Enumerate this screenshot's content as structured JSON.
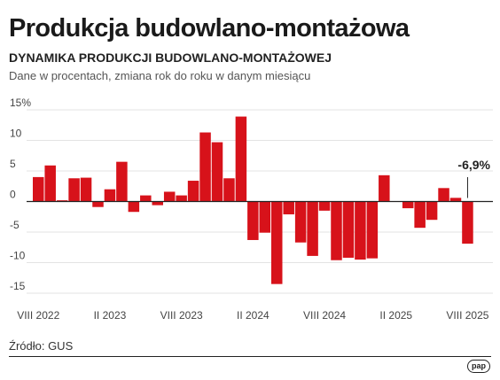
{
  "header": {
    "title": "Produkcja budowlano-montażowa",
    "subtitle": "DYNAMIKA PRODUKCJI BUDOWLANO-MONTAŻOWEJ",
    "note": "Dane w procentach, zmiana rok do roku w danym miesiącu"
  },
  "footer": {
    "source": "Źródło: GUS",
    "logo": "pap"
  },
  "colors": {
    "bar": "#d7121a",
    "grid": "#e3e3e3",
    "zero_line": "#222222"
  },
  "chart_data": {
    "type": "bar",
    "title": "DYNAMIKA PRODUKCJI BUDOWLANO-MONTAŻOWEJ",
    "x": [
      "2022-08",
      "2022-09",
      "2022-10",
      "2022-11",
      "2022-12",
      "2023-01",
      "2023-02",
      "2023-03",
      "2023-04",
      "2023-05",
      "2023-06",
      "2023-07",
      "2023-08",
      "2023-09",
      "2023-10",
      "2023-11",
      "2023-12",
      "2024-01",
      "2024-02",
      "2024-03",
      "2024-04",
      "2024-05",
      "2024-06",
      "2024-07",
      "2024-08",
      "2024-09",
      "2024-10",
      "2024-11",
      "2024-12",
      "2025-01",
      "2025-02",
      "2025-03",
      "2025-04",
      "2025-05",
      "2025-06",
      "2025-07",
      "2025-08"
    ],
    "values": [
      4.0,
      5.9,
      0.2,
      3.8,
      3.9,
      -0.9,
      2.0,
      6.5,
      -1.7,
      1.0,
      -0.6,
      1.6,
      1.0,
      3.4,
      11.3,
      9.7,
      3.8,
      13.9,
      -6.3,
      -5.1,
      -13.5,
      -2.1,
      -6.7,
      -8.9,
      -1.5,
      -9.6,
      -9.2,
      -9.5,
      -9.3,
      4.3,
      0.0,
      -1.1,
      -4.3,
      -3.0,
      2.2,
      0.6,
      -6.9
    ],
    "ylim": [
      -15,
      15
    ],
    "yticks": [
      "15%",
      "10",
      "5",
      "0",
      "-5",
      "-10",
      "-15"
    ],
    "xticks": [
      {
        "label": "VIII 2022",
        "index": 0
      },
      {
        "label": "II 2023",
        "index": 6
      },
      {
        "label": "VIII 2023",
        "index": 12
      },
      {
        "label": "II 2024",
        "index": 18
      },
      {
        "label": "VIII 2024",
        "index": 24
      },
      {
        "label": "II 2025",
        "index": 30
      },
      {
        "label": "VIII 2025",
        "index": 36
      }
    ],
    "annotation": {
      "text": "-6,9%",
      "index": 36
    },
    "grid": true,
    "xlabel": "",
    "ylabel": ""
  }
}
